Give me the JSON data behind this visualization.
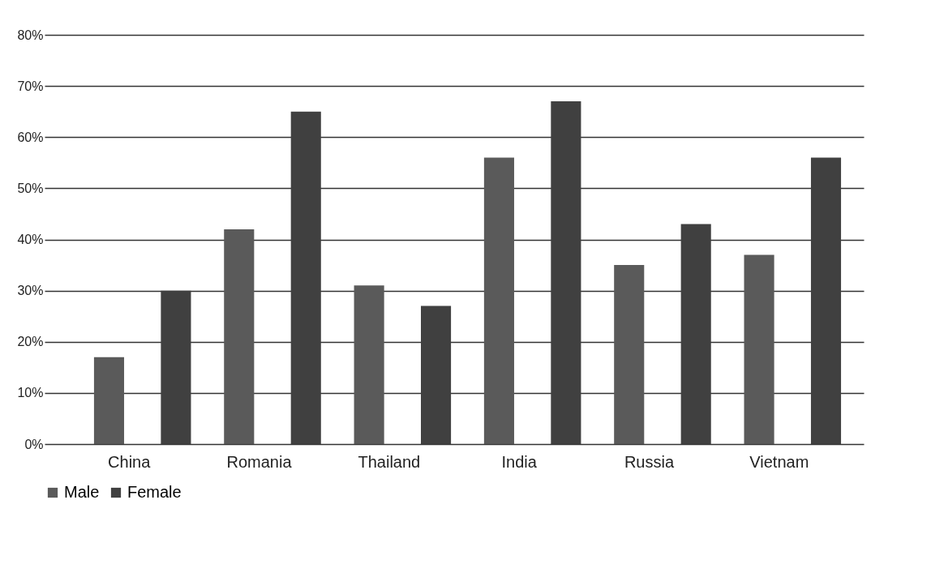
{
  "chart_data": {
    "type": "bar",
    "categories": [
      "China",
      "Romania",
      "Thailand",
      "India",
      "Russia",
      "Vietnam"
    ],
    "series": [
      {
        "name": "Male",
        "color": "#5a5a5a",
        "values": [
          17,
          42,
          31,
          56,
          35,
          37
        ]
      },
      {
        "name": "Female",
        "color": "#404040",
        "values": [
          30,
          65,
          27,
          67,
          43,
          56
        ]
      }
    ],
    "ylim": [
      0,
      80
    ],
    "yticks": [
      {
        "value": 0,
        "label": "0%"
      },
      {
        "value": 10,
        "label": "10%"
      },
      {
        "value": 20,
        "label": "20%"
      },
      {
        "value": 30,
        "label": "30%"
      },
      {
        "value": 40,
        "label": "40%"
      },
      {
        "value": 50,
        "label": "50%"
      },
      {
        "value": 60,
        "label": "60%"
      },
      {
        "value": 70,
        "label": "70%"
      },
      {
        "value": 80,
        "label": "80%"
      }
    ],
    "grid": "y",
    "legend": "bottom"
  }
}
